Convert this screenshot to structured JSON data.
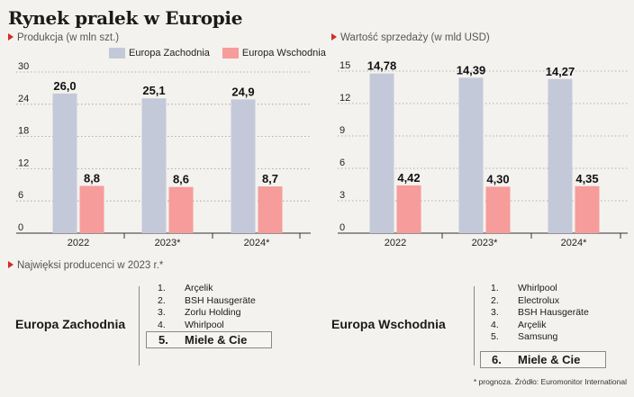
{
  "title": "Rynek pralek w Europie",
  "charts_subtitles": {
    "left": "Produkcja (w mln szt.)",
    "right": "Wartość sprzedaży (w mld USD)"
  },
  "legend": [
    {
      "name": "Europa Zachodnia",
      "color": "#c4c9d9"
    },
    {
      "name": "Europa Wschodnia",
      "color": "#f69c9b"
    }
  ],
  "chart_data": [
    {
      "type": "bar",
      "title": "Produkcja (w mln szt.)",
      "categories": [
        "2022",
        "2023*",
        "2024*"
      ],
      "series": [
        {
          "name": "Europa Zachodnia",
          "values": [
            26.0,
            25.1,
            24.9
          ],
          "labels": [
            "26,0",
            "25,1",
            "24,9"
          ],
          "color": "#c4c9d9"
        },
        {
          "name": "Europa Wschodnia",
          "values": [
            8.8,
            8.6,
            8.7
          ],
          "labels": [
            "8,8",
            "8,6",
            "8,7"
          ],
          "color": "#f69c9b"
        }
      ],
      "yticks": [
        0,
        6,
        12,
        18,
        24,
        30
      ],
      "ylim": [
        0,
        30
      ]
    },
    {
      "type": "bar",
      "title": "Wartość sprzedaży (w mld USD)",
      "categories": [
        "2022",
        "2023*",
        "2024*"
      ],
      "series": [
        {
          "name": "Europa Zachodnia",
          "values": [
            14.78,
            14.39,
            14.27
          ],
          "labels": [
            "14,78",
            "14,39",
            "14,27"
          ],
          "color": "#c4c9d9"
        },
        {
          "name": "Europa Wschodnia",
          "values": [
            4.42,
            4.3,
            4.35
          ],
          "labels": [
            "4,42",
            "4,30",
            "4,35"
          ],
          "color": "#f69c9b"
        }
      ],
      "yticks": [
        0,
        3,
        6,
        9,
        12,
        15
      ],
      "ylim": [
        0,
        15
      ]
    }
  ],
  "producers": {
    "subtitle": "Najwięksi producenci w 2023 r.*",
    "west": {
      "region": "Europa Zachodnia",
      "items": [
        {
          "rank": "1.",
          "name": "Arçelik"
        },
        {
          "rank": "2.",
          "name": "BSH Hausgeräte"
        },
        {
          "rank": "3.",
          "name": "Zorlu Holding"
        },
        {
          "rank": "4.",
          "name": "Whirlpool"
        }
      ],
      "highlight": {
        "rank": "5.",
        "name": "Miele & Cie"
      }
    },
    "east": {
      "region": "Europa Wschodnia",
      "items": [
        {
          "rank": "1.",
          "name": "Whirlpool"
        },
        {
          "rank": "2.",
          "name": "Electrolux"
        },
        {
          "rank": "3.",
          "name": "BSH Hausgeräte"
        },
        {
          "rank": "4.",
          "name": "Arçelik"
        },
        {
          "rank": "5.",
          "name": "Samsung"
        },
        {
          "rank": "...",
          "name": ""
        }
      ],
      "highlight": {
        "rank": "6.",
        "name": "Miele & Cie"
      }
    }
  },
  "footnote": "* prognoza. Źródło: Euromonitor International"
}
